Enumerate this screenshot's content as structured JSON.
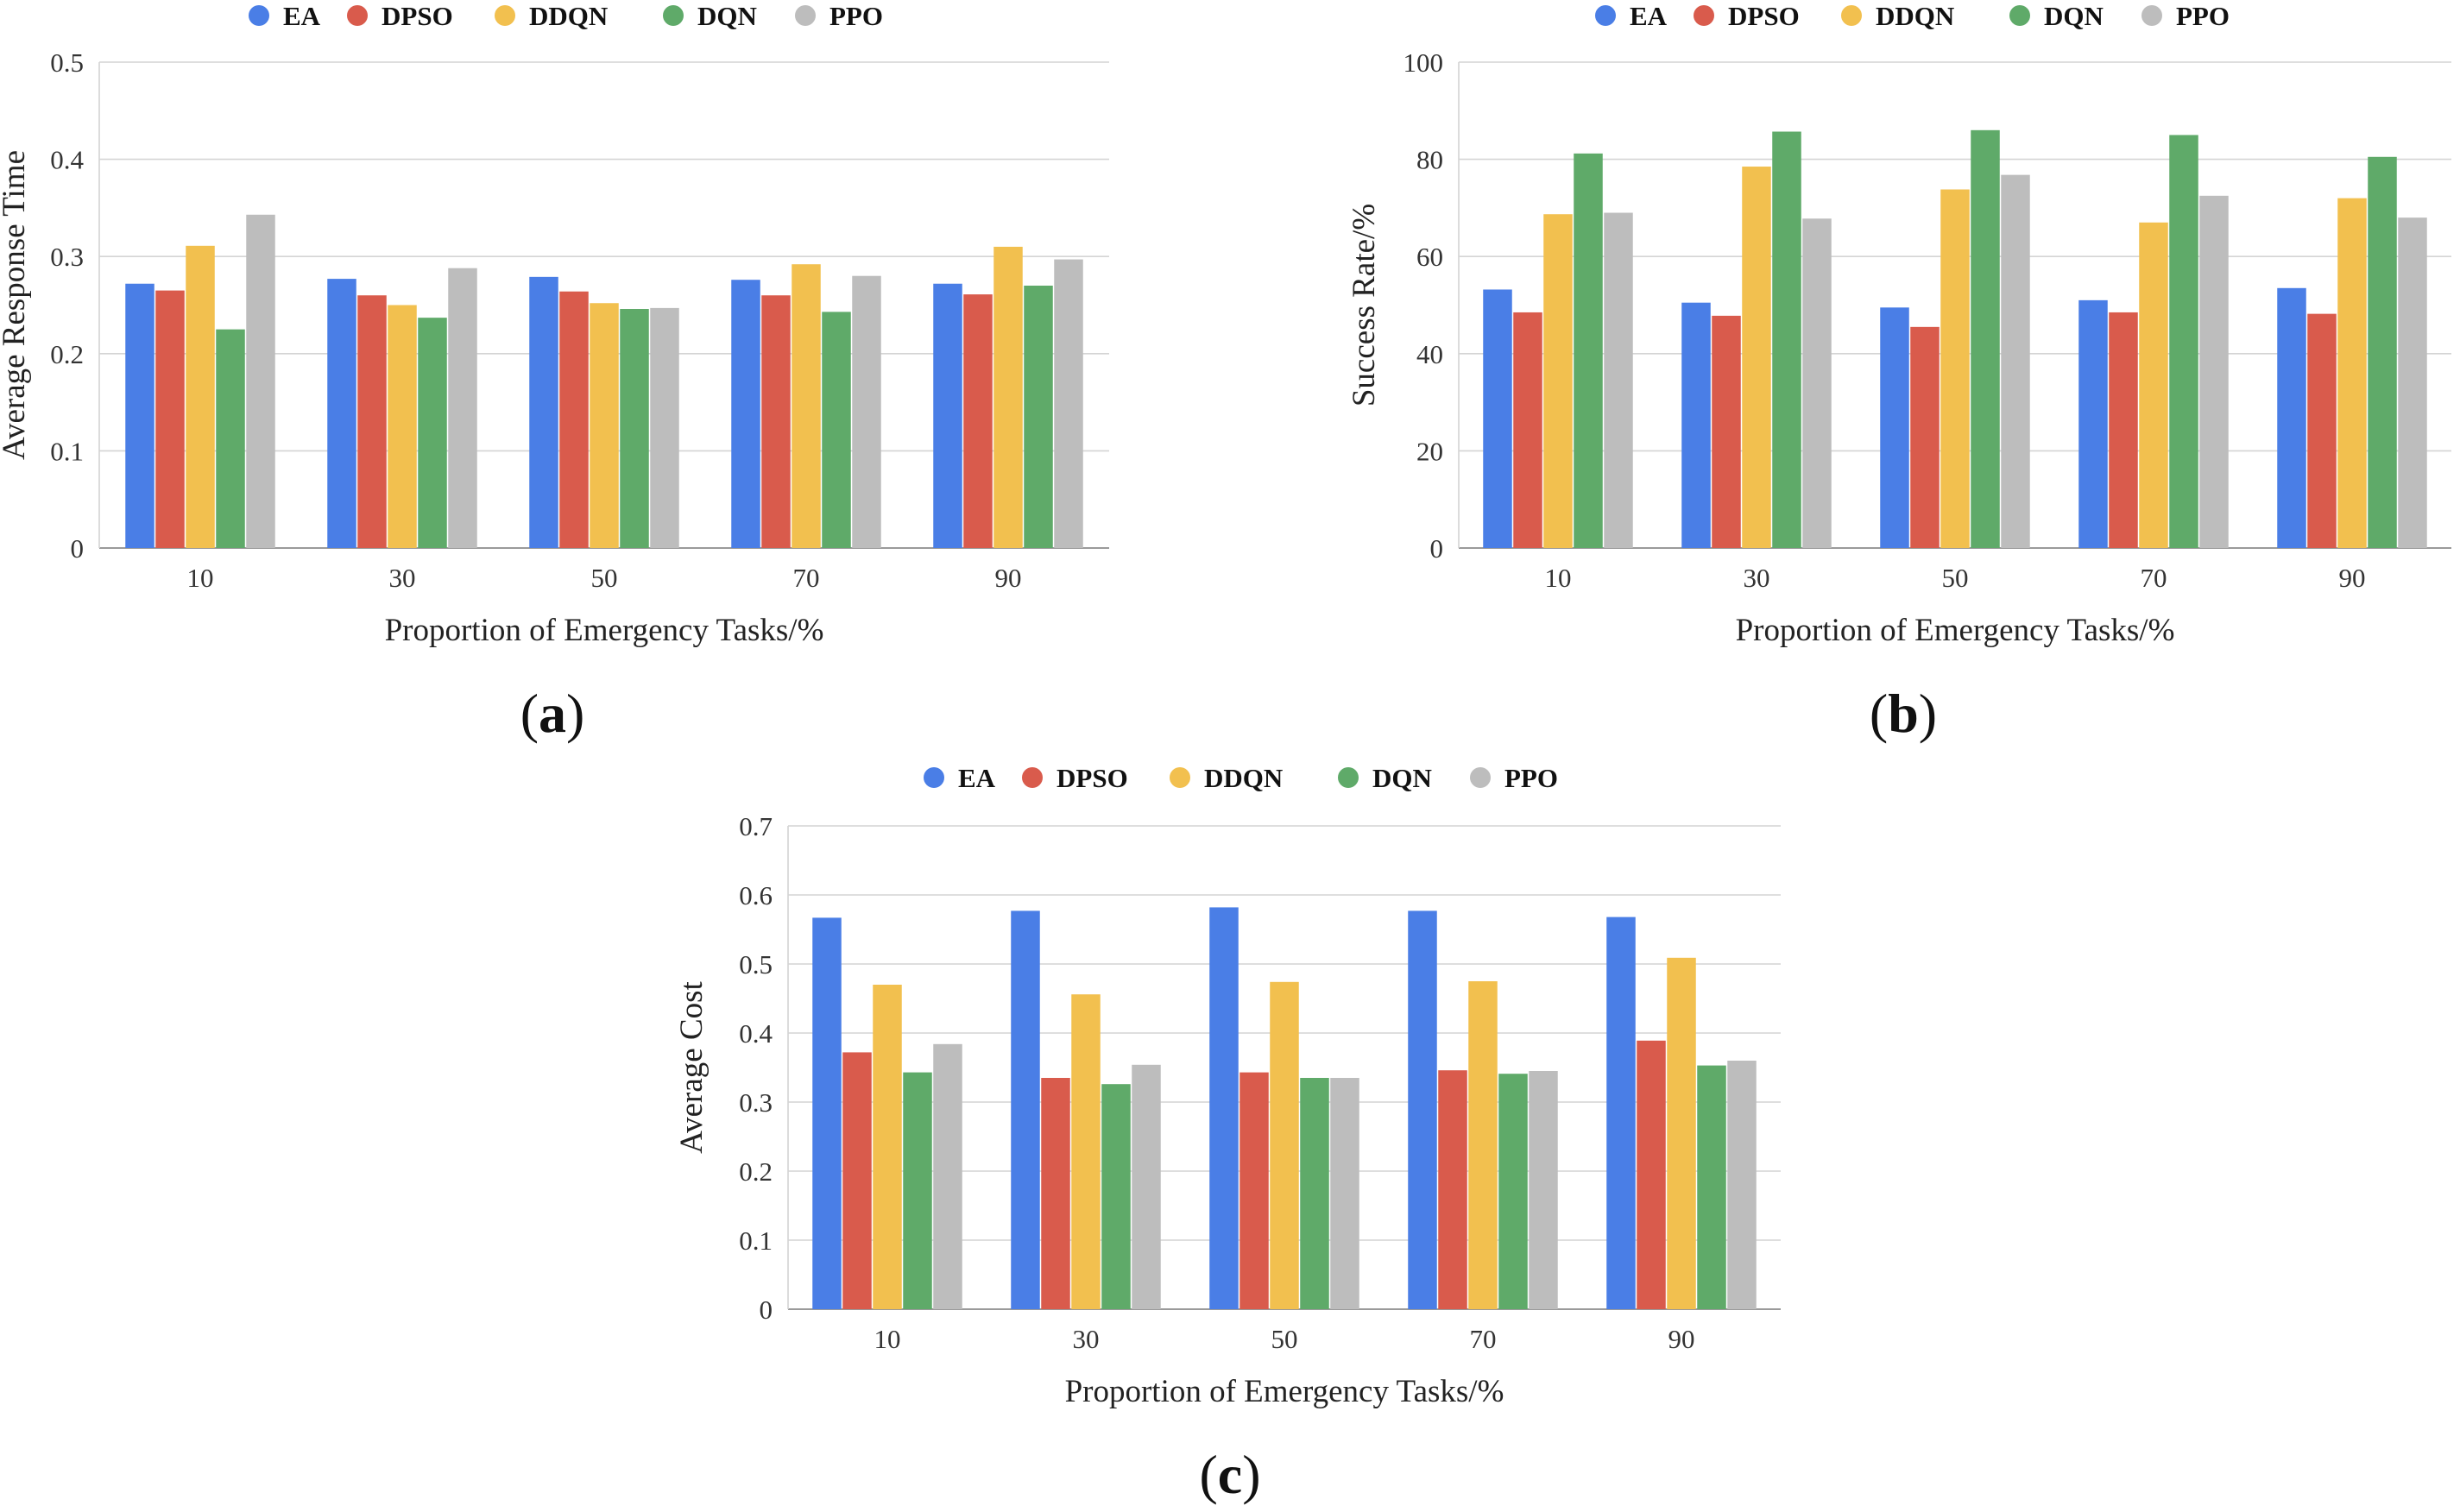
{
  "chart_data": [
    {
      "type": "bar",
      "label": "a",
      "categories": [
        "10",
        "30",
        "50",
        "70",
        "90"
      ],
      "series": [
        {
          "name": "EA",
          "color": "#4a7ee6",
          "values": [
            0.272,
            0.277,
            0.279,
            0.276,
            0.272
          ]
        },
        {
          "name": "DPSO",
          "color": "#d95b4c",
          "values": [
            0.265,
            0.26,
            0.264,
            0.26,
            0.261
          ]
        },
        {
          "name": "DDQN",
          "color": "#f2c04f",
          "values": [
            0.311,
            0.25,
            0.252,
            0.292,
            0.31
          ]
        },
        {
          "name": "DQN",
          "color": "#5faa69",
          "values": [
            0.225,
            0.237,
            0.246,
            0.243,
            0.27
          ]
        },
        {
          "name": "PPO",
          "color": "#bdbdbd",
          "values": [
            0.343,
            0.288,
            0.247,
            0.28,
            0.297
          ]
        }
      ],
      "title": "",
      "xlabel": "Proportion of Emergency Tasks/%",
      "ylabel": "Average Response Time",
      "ylim": [
        0,
        0.5
      ],
      "yticks": [
        "0",
        "0.1",
        "0.2",
        "0.3",
        "0.4",
        "0.5"
      ],
      "grid": true,
      "legend_position": "top"
    },
    {
      "type": "bar",
      "label": "b",
      "categories": [
        "10",
        "30",
        "50",
        "70",
        "90"
      ],
      "series": [
        {
          "name": "EA",
          "color": "#4a7ee6",
          "values": [
            53.2,
            50.5,
            49.5,
            51.0,
            53.5
          ]
        },
        {
          "name": "DPSO",
          "color": "#d95b4c",
          "values": [
            48.5,
            47.8,
            45.5,
            48.5,
            48.2
          ]
        },
        {
          "name": "DDQN",
          "color": "#f2c04f",
          "values": [
            68.7,
            78.5,
            73.8,
            67.0,
            72.0
          ]
        },
        {
          "name": "DQN",
          "color": "#5faa69",
          "values": [
            81.2,
            85.7,
            86.0,
            85.0,
            80.5
          ]
        },
        {
          "name": "PPO",
          "color": "#bdbdbd",
          "values": [
            69.0,
            67.8,
            76.8,
            72.5,
            68.0
          ]
        }
      ],
      "title": "",
      "xlabel": "Proportion of Emergency Tasks/%",
      "ylabel": "Success Rate/%",
      "ylim": [
        0,
        100
      ],
      "yticks": [
        "0",
        "20",
        "40",
        "60",
        "80",
        "100"
      ],
      "grid": true,
      "legend_position": "top"
    },
    {
      "type": "bar",
      "label": "c",
      "categories": [
        "10",
        "30",
        "50",
        "70",
        "90"
      ],
      "series": [
        {
          "name": "EA",
          "color": "#4a7ee6",
          "values": [
            0.567,
            0.577,
            0.582,
            0.577,
            0.568
          ]
        },
        {
          "name": "DPSO",
          "color": "#d95b4c",
          "values": [
            0.372,
            0.335,
            0.343,
            0.346,
            0.389
          ]
        },
        {
          "name": "DDQN",
          "color": "#f2c04f",
          "values": [
            0.47,
            0.456,
            0.474,
            0.475,
            0.509
          ]
        },
        {
          "name": "DQN",
          "color": "#5faa69",
          "values": [
            0.343,
            0.326,
            0.335,
            0.341,
            0.353
          ]
        },
        {
          "name": "PPO",
          "color": "#bdbdbd",
          "values": [
            0.384,
            0.354,
            0.335,
            0.345,
            0.36
          ]
        }
      ],
      "title": "",
      "xlabel": "Proportion of Emergency Tasks/%",
      "ylabel": "Average Cost",
      "ylim": [
        0,
        0.7
      ],
      "yticks": [
        "0",
        "0.1",
        "0.2",
        "0.3",
        "0.4",
        "0.5",
        "0.6",
        "0.7"
      ],
      "grid": true,
      "legend_position": "top"
    }
  ],
  "panels": [
    {
      "open": "(",
      "letter": "a",
      "close": ")"
    },
    {
      "open": "(",
      "letter": "b",
      "close": ")"
    },
    {
      "open": "(",
      "letter": "c",
      "close": ")"
    }
  ]
}
